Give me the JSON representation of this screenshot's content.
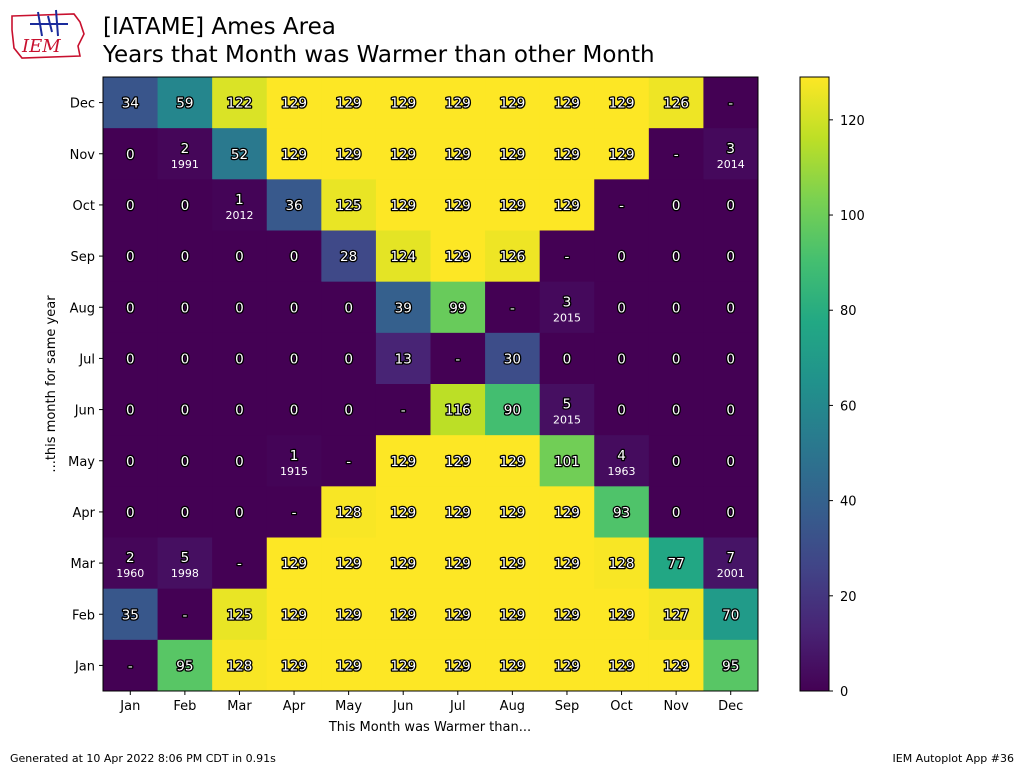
{
  "header": {
    "logo_text": "IEM",
    "title_line1": "[IATAME] Ames Area",
    "title_line2": "Years that Month was Warmer than other Month"
  },
  "footer": {
    "left": "Generated at 10 Apr 2022 8:06 PM CDT in 0.91s",
    "right": "IEM Autoplot App #36"
  },
  "colors": {
    "viridis_low": "#440154",
    "viridis_high": "#fde725"
  },
  "chart_data": {
    "type": "heatmap",
    "colormap": "viridis",
    "xlabel": "This Month was Warmer than...",
    "ylabel": "...this month for same year",
    "x_categories": [
      "Jan",
      "Feb",
      "Mar",
      "Apr",
      "May",
      "Jun",
      "Jul",
      "Aug",
      "Sep",
      "Oct",
      "Nov",
      "Dec"
    ],
    "y_categories": [
      "Dec",
      "Nov",
      "Oct",
      "Sep",
      "Aug",
      "Jul",
      "Jun",
      "May",
      "Apr",
      "Mar",
      "Feb",
      "Jan"
    ],
    "color_range": [
      0,
      129
    ],
    "colorbar_ticks": [
      0,
      20,
      40,
      60,
      80,
      100,
      120
    ],
    "rows": [
      {
        "label": "Dec",
        "values": [
          34,
          59,
          122,
          129,
          129,
          129,
          129,
          129,
          129,
          129,
          126,
          null
        ],
        "years": [
          null,
          null,
          null,
          null,
          null,
          null,
          null,
          null,
          null,
          null,
          null,
          null
        ]
      },
      {
        "label": "Nov",
        "values": [
          0,
          2,
          52,
          129,
          129,
          129,
          129,
          129,
          129,
          129,
          null,
          3
        ],
        "years": [
          null,
          "1991",
          null,
          null,
          null,
          null,
          null,
          null,
          null,
          null,
          null,
          "2014"
        ]
      },
      {
        "label": "Oct",
        "values": [
          0,
          0,
          1,
          36,
          125,
          129,
          129,
          129,
          129,
          null,
          0,
          0
        ],
        "years": [
          null,
          null,
          "2012",
          null,
          null,
          null,
          null,
          null,
          null,
          null,
          null,
          null
        ]
      },
      {
        "label": "Sep",
        "values": [
          0,
          0,
          0,
          0,
          28,
          124,
          129,
          126,
          null,
          0,
          0,
          0
        ],
        "years": [
          null,
          null,
          null,
          null,
          null,
          null,
          null,
          null,
          null,
          null,
          null,
          null
        ]
      },
      {
        "label": "Aug",
        "values": [
          0,
          0,
          0,
          0,
          0,
          39,
          99,
          null,
          3,
          0,
          0,
          0
        ],
        "years": [
          null,
          null,
          null,
          null,
          null,
          null,
          null,
          null,
          "2015",
          null,
          null,
          null
        ]
      },
      {
        "label": "Jul",
        "values": [
          0,
          0,
          0,
          0,
          0,
          13,
          null,
          30,
          0,
          0,
          0,
          0
        ],
        "years": [
          null,
          null,
          null,
          null,
          null,
          null,
          null,
          null,
          null,
          null,
          null,
          null
        ]
      },
      {
        "label": "Jun",
        "values": [
          0,
          0,
          0,
          0,
          0,
          null,
          116,
          90,
          5,
          0,
          0,
          0
        ],
        "years": [
          null,
          null,
          null,
          null,
          null,
          null,
          null,
          null,
          "2015",
          null,
          null,
          null
        ]
      },
      {
        "label": "May",
        "values": [
          0,
          0,
          0,
          1,
          null,
          129,
          129,
          129,
          101,
          4,
          0,
          0
        ],
        "years": [
          null,
          null,
          null,
          "1915",
          null,
          null,
          null,
          null,
          null,
          "1963",
          null,
          null
        ]
      },
      {
        "label": "Apr",
        "values": [
          0,
          0,
          0,
          null,
          128,
          129,
          129,
          129,
          129,
          93,
          0,
          0
        ],
        "years": [
          null,
          null,
          null,
          null,
          null,
          null,
          null,
          null,
          null,
          null,
          null,
          null
        ]
      },
      {
        "label": "Mar",
        "values": [
          2,
          5,
          null,
          129,
          129,
          129,
          129,
          129,
          129,
          128,
          77,
          7
        ],
        "years": [
          "1960",
          "1998",
          null,
          null,
          null,
          null,
          null,
          null,
          null,
          null,
          null,
          "2001"
        ]
      },
      {
        "label": "Feb",
        "values": [
          35,
          null,
          125,
          129,
          129,
          129,
          129,
          129,
          129,
          129,
          127,
          70
        ],
        "years": [
          null,
          null,
          null,
          null,
          null,
          null,
          null,
          null,
          null,
          null,
          null,
          null
        ]
      },
      {
        "label": "Jan",
        "values": [
          null,
          95,
          128,
          129,
          129,
          129,
          129,
          129,
          129,
          129,
          129,
          95
        ],
        "years": [
          null,
          null,
          null,
          null,
          null,
          null,
          null,
          null,
          null,
          null,
          null,
          null
        ]
      }
    ],
    "missing_label": "-"
  }
}
